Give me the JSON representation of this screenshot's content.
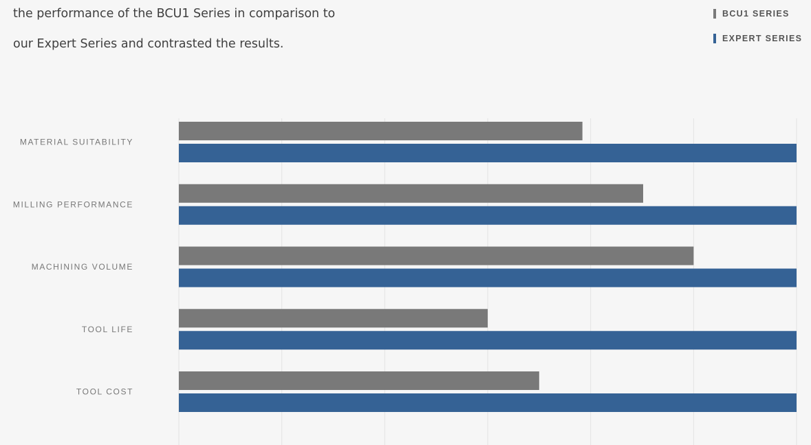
{
  "intro": {
    "line1": "the performance of the BCU1 Series in comparison to",
    "line2": "our Expert Series and contrasted the results."
  },
  "colors": {
    "bcu1": "#797979",
    "expert": "#356295",
    "grid": "#e3e3e3"
  },
  "chart_data": {
    "type": "bar",
    "orientation": "horizontal",
    "categories": [
      "MATERIAL SUITABILITY",
      "MILLING PERFORMANCE",
      "MACHINING VOLUME",
      "TOOL LIFE",
      "TOOL COST"
    ],
    "series": [
      {
        "name": "BCU1 SERIES",
        "values": [
          3.92,
          4.51,
          5.0,
          3.0,
          3.5
        ]
      },
      {
        "name": "EXPERT SERIES",
        "values": [
          6.0,
          6.0,
          6.0,
          6.0,
          6.0
        ]
      }
    ],
    "xlim": [
      0,
      6
    ],
    "grid": true,
    "legend": "top-right",
    "title": "",
    "xlabel": "",
    "ylabel": ""
  }
}
